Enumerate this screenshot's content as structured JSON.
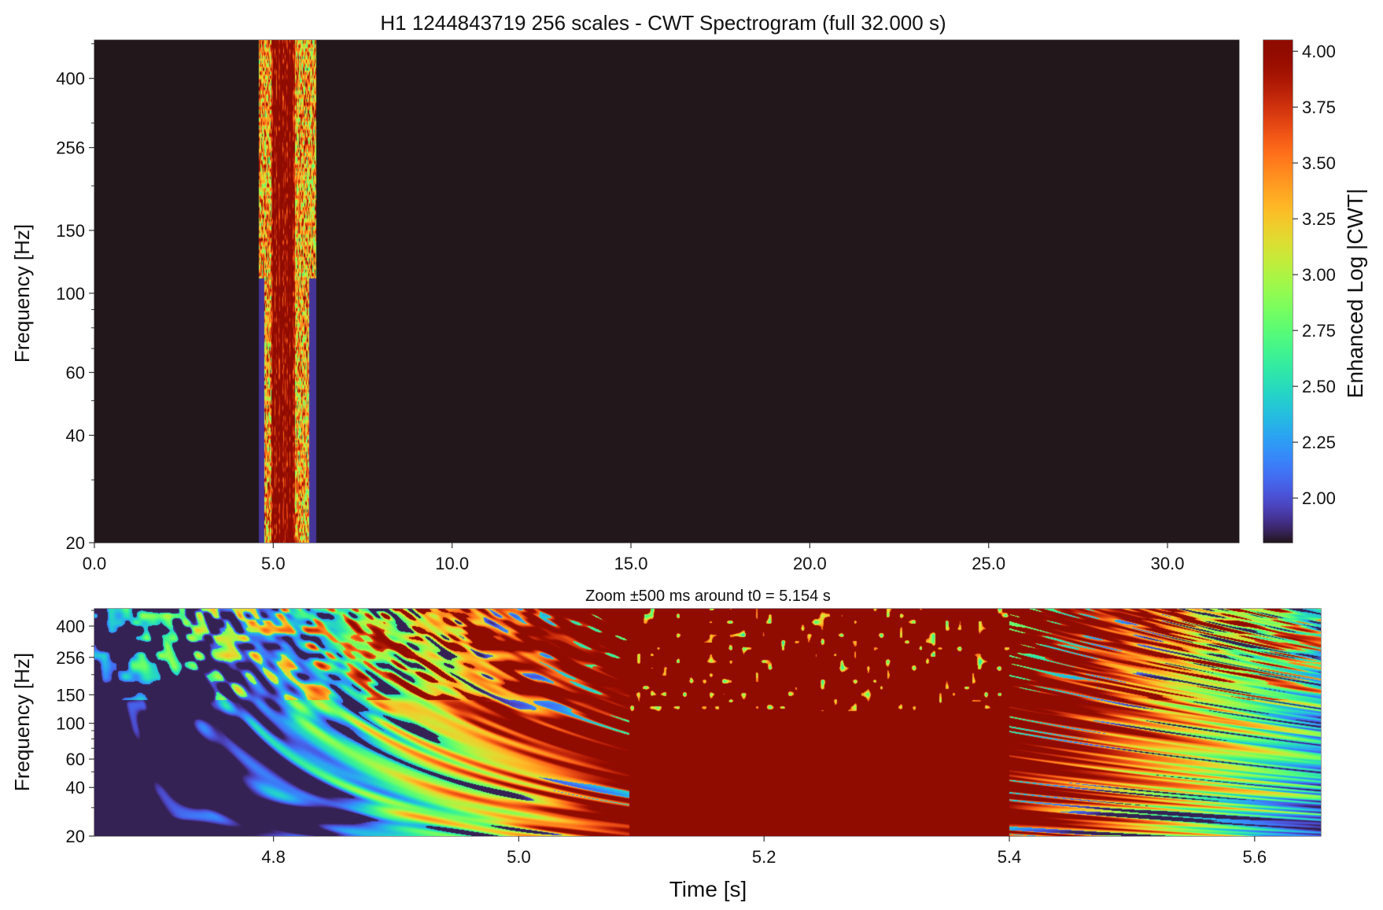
{
  "chart_data": [
    {
      "type": "heatmap",
      "title": "H1 1244843719 256 scales - CWT Spectrogram (full 32.000 s)",
      "xlabel": "",
      "ylabel": "Frequency [Hz]",
      "xlim": [
        0,
        32
      ],
      "ylim": [
        20,
        512
      ],
      "yscale": "log",
      "x_ticks": [
        "0.0",
        "5.0",
        "10.0",
        "15.0",
        "20.0",
        "25.0",
        "30.0"
      ],
      "x_tick_values": [
        0,
        5,
        10,
        15,
        20,
        25,
        30
      ],
      "y_ticks": [
        "20",
        "40",
        "60",
        "100",
        "150",
        "256",
        "400"
      ],
      "y_tick_values": [
        20,
        40,
        60,
        100,
        150,
        256,
        400
      ],
      "background_value": 1.8,
      "burst": {
        "t_start": 4.6,
        "t_end": 6.2,
        "t_core_start": 4.95,
        "t_core_end": 5.6,
        "value_max": 4.05
      },
      "marker": {
        "t": 5.154,
        "shape": "down-triangle",
        "color": "#ff0000"
      },
      "colorbar": {
        "label": "Enhanced Log |CWT|",
        "vmin": 1.8,
        "vmax": 4.05,
        "ticks": [
          "2.00",
          "2.25",
          "2.50",
          "2.75",
          "3.00",
          "3.25",
          "3.50",
          "3.75",
          "4.00"
        ],
        "tick_values": [
          2.0,
          2.25,
          2.5,
          2.75,
          3.0,
          3.25,
          3.5,
          3.75,
          4.0
        ],
        "colormap": "turbo"
      }
    },
    {
      "type": "heatmap",
      "title": "Zoom ±500 ms around t0 = 5.154 s",
      "xlabel": "Time [s]",
      "ylabel": "Frequency [Hz]",
      "xlim": [
        4.654,
        5.654
      ],
      "ylim": [
        20,
        512
      ],
      "yscale": "log",
      "x_ticks": [
        "4.8",
        "5.0",
        "5.2",
        "5.4",
        "5.6"
      ],
      "x_tick_values": [
        4.8,
        5.0,
        5.2,
        5.4,
        5.6
      ],
      "y_ticks": [
        "20",
        "40",
        "60",
        "100",
        "150",
        "256",
        "400"
      ],
      "y_tick_values": [
        20,
        40,
        60,
        100,
        150,
        256,
        400
      ],
      "saturated_region": {
        "t_start": 5.09,
        "t_end": 5.4
      },
      "marker": {
        "t": 5.154,
        "shape": "down-triangle",
        "color": "#ff0000"
      }
    }
  ]
}
